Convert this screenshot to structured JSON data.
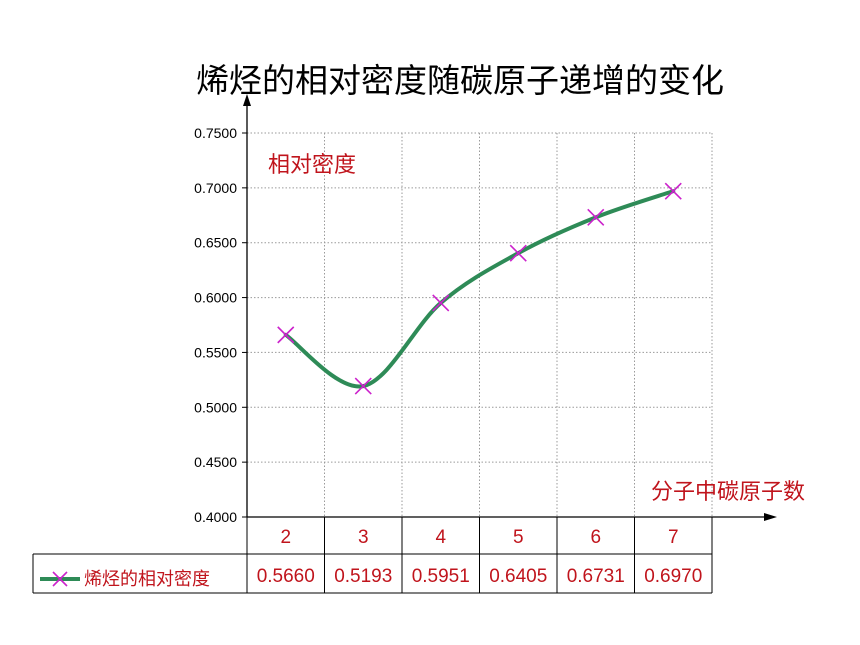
{
  "chart_data": {
    "type": "line",
    "title": "烯烃的相对密度随碳原子递增的变化",
    "ylabel": "相对密度",
    "xlabel": "分子中碳原子数",
    "categories": [
      "2",
      "3",
      "4",
      "5",
      "6",
      "7"
    ],
    "series": [
      {
        "name": "烯烃的相对密度",
        "values": [
          0.566,
          0.5193,
          0.5951,
          0.6405,
          0.6731,
          0.697
        ]
      }
    ],
    "value_labels": [
      "0.5660",
      "0.5193",
      "0.5951",
      "0.6405",
      "0.6731",
      "0.6970"
    ],
    "ylim": [
      0.4,
      0.75
    ],
    "yticks": [
      "0.4000",
      "0.4500",
      "0.5000",
      "0.5500",
      "0.6000",
      "0.6500",
      "0.7000",
      "0.7500"
    ],
    "grid": true,
    "data_table": true
  },
  "colors": {
    "line": "#2e8b57",
    "marker": "#cc22cc",
    "label_text": "#c0141c",
    "grid": "#9a9a9a",
    "axis": "#000000"
  }
}
